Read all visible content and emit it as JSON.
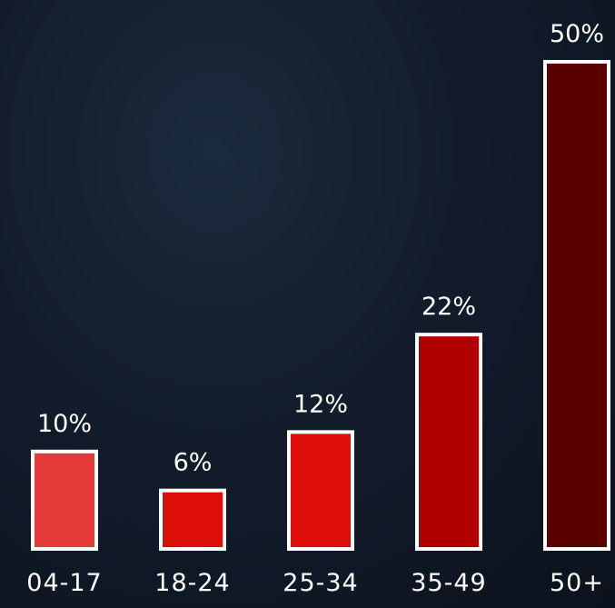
{
  "chart_data": {
    "type": "bar",
    "categories": [
      "04-17",
      "18-24",
      "25-34",
      "35-49",
      "50+"
    ],
    "values": [
      10,
      6,
      12,
      22,
      50
    ],
    "value_labels": [
      "10%",
      "6%",
      "12%",
      "22%",
      "50%"
    ],
    "ylim": [
      0,
      50
    ],
    "grid": false,
    "legend": "none",
    "colors": [
      "#e53a3a",
      "#dd0d08",
      "#de0f09",
      "#b10000",
      "#5a0000"
    ],
    "title": "",
    "xlabel": "",
    "ylabel": ""
  }
}
